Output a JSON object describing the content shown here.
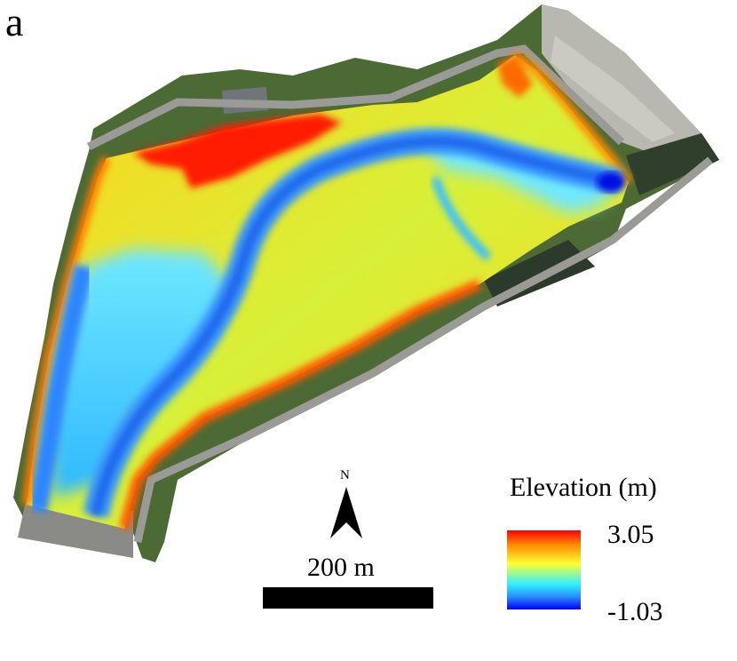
{
  "panel_label": "a",
  "legend": {
    "title": "Elevation (m)",
    "max_value": "3.05",
    "min_value": "-1.03",
    "colors": [
      "#ff0000",
      "#ff8a00",
      "#ffff33",
      "#30f0ff",
      "#2a8cff",
      "#0000ff"
    ]
  },
  "north_arrow": {
    "label": "N"
  },
  "scale_bar": {
    "label": "200 m"
  },
  "map_colors": {
    "vegetation": "#3f5a2a",
    "road": "#8c8c88",
    "high": "#ff1a00",
    "mid": "#ffd21a",
    "low": "#33d0ff",
    "channel": "#2f8cff"
  }
}
